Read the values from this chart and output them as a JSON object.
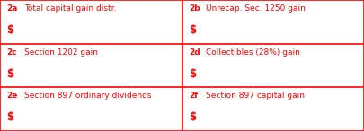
{
  "border_color": "#ff0000",
  "text_color": "#ff0000",
  "bg_color": "#ffffff",
  "cells": [
    {
      "label": "2a",
      "desc": "Total capital gain distr.",
      "row": 0,
      "col": 0
    },
    {
      "label": "2b",
      "desc": "Unrecap. Sec. 1250 gain",
      "row": 0,
      "col": 1
    },
    {
      "label": "2c",
      "desc": "Section 1202 gain",
      "row": 1,
      "col": 0
    },
    {
      "label": "2d",
      "desc": "Collectibles (28%) gain",
      "row": 1,
      "col": 1
    },
    {
      "label": "2e",
      "desc": "Section 897 ordinary dividends",
      "row": 2,
      "col": 0
    },
    {
      "label": "2f",
      "desc": "Section 897 capital gain",
      "row": 2,
      "col": 1
    }
  ],
  "n_rows": 3,
  "n_cols": 2,
  "label_fontsize": 6.5,
  "desc_fontsize": 6.5,
  "dollar_fontsize": 8.5,
  "border_lw": 1.2,
  "fig_width": 4.05,
  "fig_height": 1.46,
  "dpi": 100
}
